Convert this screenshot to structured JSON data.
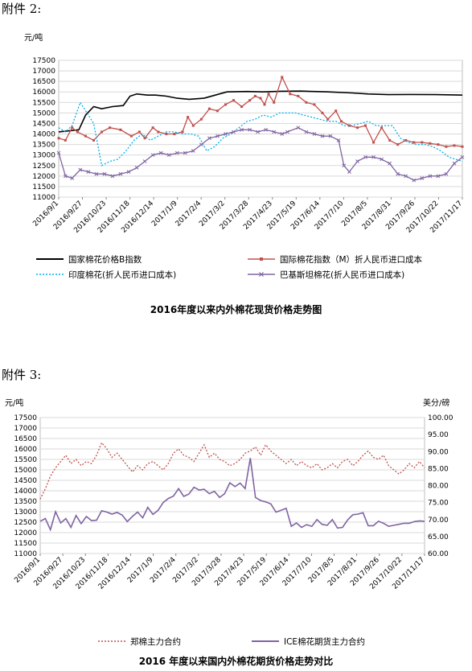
{
  "headings": {
    "h1": "附件 2:",
    "h2": "附件 3:"
  },
  "chart_data": [
    {
      "type": "line",
      "title": "2016年度以来内外棉花现货价格走势图",
      "ylabel": "元/吨",
      "ylim": [
        11000,
        17500
      ],
      "yticks": [
        11000,
        11500,
        12000,
        12500,
        13000,
        13500,
        14000,
        14500,
        15000,
        15500,
        16000,
        16500,
        17000,
        17500
      ],
      "xticks": [
        "2016/9/1",
        "2016/9/27",
        "2016/10/23",
        "2016/11/18",
        "2016/12/14",
        "2017/1/9",
        "2017/2/4",
        "2017/3/2",
        "2017/3/28",
        "2017/4/23",
        "2017/5/19",
        "2017/6/14",
        "2017/7/10",
        "2017/8/5",
        "2017/8/31",
        "2017/9/26",
        "2017/10/22",
        "2017/11/17"
      ],
      "legend_position": "bottom",
      "series": [
        {
          "name": "国家棉花价格B指数",
          "style": "solid",
          "color": "#000000",
          "x": [
            0,
            8,
            15,
            20,
            26,
            32,
            40,
            48,
            53,
            58,
            66,
            72,
            80,
            88,
            97,
            108,
            125,
            140,
            152,
            165,
            180,
            200,
            218,
            230,
            245,
            262,
            280,
            300
          ],
          "y": [
            14100,
            14150,
            14200,
            14900,
            15300,
            15200,
            15300,
            15350,
            15800,
            15900,
            15850,
            15850,
            15800,
            15700,
            15650,
            15700,
            16000,
            16020,
            16000,
            16030,
            16040,
            16000,
            15950,
            15900,
            15870,
            15880,
            15870,
            15850
          ]
        },
        {
          "name": "国际棉花指数（M）折人民币进口成本",
          "style": "marker-square",
          "color": "#c0504d",
          "x": [
            0,
            5,
            10,
            14,
            20,
            26,
            32,
            38,
            46,
            54,
            60,
            64,
            70,
            74,
            80,
            86,
            92,
            96,
            100,
            106,
            112,
            118,
            124,
            130,
            136,
            142,
            146,
            150,
            153,
            156,
            160,
            166,
            172,
            178,
            184,
            190,
            196,
            200,
            206,
            210,
            216,
            222,
            228,
            234,
            240,
            246,
            252,
            258,
            264,
            270,
            276,
            282,
            288,
            294,
            300
          ],
          "y": [
            13800,
            13700,
            14300,
            14100,
            13900,
            13700,
            14100,
            14300,
            14200,
            13900,
            14100,
            13800,
            14300,
            14100,
            14000,
            14000,
            14100,
            14800,
            14400,
            14700,
            15200,
            15100,
            15400,
            15600,
            15300,
            15600,
            15800,
            15700,
            15400,
            15900,
            15500,
            16700,
            15900,
            15800,
            15500,
            15400,
            15000,
            14700,
            15100,
            14600,
            14400,
            14300,
            14400,
            13600,
            14300,
            13700,
            13500,
            13700,
            13600,
            13600,
            13550,
            13500,
            13400,
            13450,
            13400
          ]
        },
        {
          "name": "印度棉花(折人民币进口成本)",
          "style": "dotted",
          "color": "#00b0f0",
          "x": [
            0,
            5,
            10,
            16,
            20,
            26,
            32,
            38,
            44,
            50,
            56,
            62,
            68,
            74,
            80,
            86,
            92,
            98,
            104,
            110,
            116,
            122,
            128,
            134,
            140,
            146,
            152,
            158,
            164,
            170,
            176,
            182,
            188,
            194,
            200,
            206,
            212,
            218,
            224,
            230,
            236,
            242,
            248,
            254,
            260,
            266,
            272,
            278,
            284,
            290,
            300
          ],
          "y": [
            14300,
            14100,
            14400,
            15500,
            15100,
            14500,
            12500,
            12700,
            12800,
            13200,
            13700,
            14000,
            13700,
            13900,
            14100,
            14100,
            14000,
            14000,
            13900,
            13200,
            13400,
            13800,
            14000,
            14300,
            14600,
            14700,
            14900,
            14800,
            15000,
            15000,
            15000,
            14900,
            14800,
            14700,
            14600,
            14600,
            14400,
            14400,
            14500,
            14600,
            14400,
            14400,
            14400,
            13800,
            13600,
            13500,
            13500,
            13400,
            13200,
            12900,
            12700
          ]
        },
        {
          "name": "巴基斯坦棉花(折人民币进口成本)",
          "style": "marker-x",
          "color": "#8064a2",
          "x": [
            0,
            5,
            10,
            16,
            22,
            28,
            34,
            40,
            46,
            52,
            58,
            64,
            70,
            76,
            82,
            88,
            94,
            100,
            106,
            112,
            118,
            124,
            130,
            136,
            142,
            148,
            154,
            160,
            166,
            170,
            178,
            184,
            190,
            196,
            202,
            208,
            212,
            216,
            222,
            228,
            234,
            240,
            246,
            252,
            258,
            264,
            270,
            276,
            282,
            288,
            294,
            300
          ],
          "y": [
            13100,
            12000,
            11900,
            12300,
            12200,
            12100,
            12100,
            12000,
            12100,
            12200,
            12400,
            12700,
            13000,
            13100,
            13000,
            13100,
            13100,
            13200,
            13500,
            13800,
            13900,
            14000,
            14100,
            14200,
            14200,
            14100,
            14200,
            14100,
            14000,
            14100,
            14300,
            14100,
            14000,
            13900,
            13900,
            13700,
            12500,
            12200,
            12700,
            12900,
            12900,
            12800,
            12600,
            12100,
            12000,
            11800,
            11900,
            12000,
            12000,
            12100,
            12600,
            12900
          ]
        }
      ]
    },
    {
      "type": "line",
      "title": "2016 年度以来国内外棉花期货价格走势对比",
      "ylabel": "元/吨",
      "y2label": "美分/磅",
      "ylim": [
        11000,
        17500
      ],
      "y2lim": [
        60,
        100
      ],
      "yticks": [
        11000,
        11500,
        12000,
        12500,
        13000,
        13500,
        14000,
        14500,
        15000,
        15500,
        16000,
        16500,
        17000,
        17500
      ],
      "y2ticks": [
        "60.00",
        "65.00",
        "70.00",
        "75.00",
        "80.00",
        "85.00",
        "90.00",
        "95.00",
        "100.00"
      ],
      "xticks": [
        "2016/9/1",
        "2016/9/27",
        "2016/10/23",
        "2016/11/18",
        "2016/12/14",
        "2017/1/9",
        "2017/2/4",
        "2017/3/2",
        "2017/3/28",
        "2017/4/23",
        "2017/5/19",
        "2017/6/14",
        "2017/7/10",
        "2017/8/5",
        "2017/8/31",
        "2017/9/26",
        "2017/10/22",
        "2017/11/17"
      ],
      "legend_position": "bottom",
      "series": [
        {
          "name": "郑棉主力合约",
          "axis": "left",
          "style": "dotted",
          "color": "#c0504d",
          "x": [
            0,
            4,
            8,
            12,
            16,
            20,
            24,
            28,
            32,
            36,
            40,
            44,
            48,
            52,
            56,
            60,
            64,
            68,
            72,
            76,
            80,
            84,
            88,
            92,
            96,
            100,
            104,
            108,
            112,
            116,
            120,
            124,
            128,
            132,
            136,
            140,
            144,
            148,
            152,
            156,
            160,
            164,
            168,
            172,
            176,
            180,
            184,
            188,
            192,
            196,
            200,
            204,
            208,
            212,
            216,
            220,
            224,
            228,
            232,
            236,
            240,
            244,
            248,
            252,
            256,
            260,
            264,
            268,
            272,
            276,
            280,
            284,
            288,
            292,
            296,
            300
          ],
          "y": [
            13600,
            14100,
            14700,
            15100,
            15400,
            15700,
            15300,
            15500,
            15200,
            15400,
            15300,
            15700,
            16300,
            16000,
            15600,
            15800,
            15500,
            15200,
            14900,
            15200,
            15000,
            15300,
            15400,
            15200,
            15000,
            15300,
            15800,
            16000,
            15700,
            15600,
            15400,
            15800,
            16200,
            15600,
            15800,
            15500,
            15400,
            15200,
            15300,
            15500,
            15800,
            15900,
            16100,
            15700,
            16200,
            15900,
            15700,
            15500,
            15300,
            15500,
            15200,
            15400,
            15200,
            15100,
            15300,
            15000,
            15100,
            15300,
            15100,
            15400,
            15500,
            15200,
            15400,
            15700,
            15900,
            15600,
            15500,
            15700,
            15200,
            15000,
            14800,
            15000,
            15300,
            15100,
            15400,
            15100
          ]
        },
        {
          "name": "ICE棉花期货主力合约",
          "axis": "right",
          "style": "solid",
          "color": "#8064a2",
          "x": [
            0,
            4,
            8,
            12,
            16,
            20,
            24,
            28,
            32,
            36,
            40,
            44,
            48,
            52,
            56,
            60,
            64,
            68,
            72,
            76,
            80,
            84,
            88,
            92,
            96,
            100,
            104,
            108,
            112,
            116,
            120,
            124,
            128,
            132,
            136,
            140,
            144,
            148,
            152,
            156,
            160,
            164,
            168,
            172,
            176,
            180,
            184,
            188,
            192,
            196,
            200,
            204,
            208,
            212,
            216,
            220,
            224,
            228,
            232,
            236,
            240,
            244,
            248,
            252,
            256,
            260,
            264,
            268,
            272,
            276,
            280,
            284,
            288,
            292,
            296,
            300
          ],
          "y": [
            69.5,
            70.3,
            67.0,
            72.3,
            69.0,
            70.3,
            67.7,
            71.2,
            68.8,
            70.9,
            69.7,
            69.8,
            72.6,
            72.2,
            71.6,
            72.1,
            71.3,
            69.4,
            70.9,
            72.2,
            70.5,
            73.6,
            71.5,
            72.7,
            75.0,
            76.2,
            76.9,
            79.1,
            76.8,
            77.5,
            79.5,
            78.7,
            78.9,
            77.6,
            78.3,
            76.5,
            77.6,
            80.8,
            79.7,
            80.7,
            79.1,
            88.1,
            76.5,
            75.6,
            75.2,
            74.6,
            72.2,
            72.7,
            73.3,
            68.0,
            69.0,
            67.7,
            68.5,
            68.0,
            70.0,
            68.6,
            68.3,
            70.0,
            67.5,
            67.7,
            69.9,
            71.4,
            71.6,
            72.0,
            68.2,
            68.2,
            69.5,
            68.9,
            68.0,
            68.3,
            68.6,
            68.9,
            68.9,
            69.4,
            69.6,
            69.5
          ]
        }
      ]
    }
  ]
}
